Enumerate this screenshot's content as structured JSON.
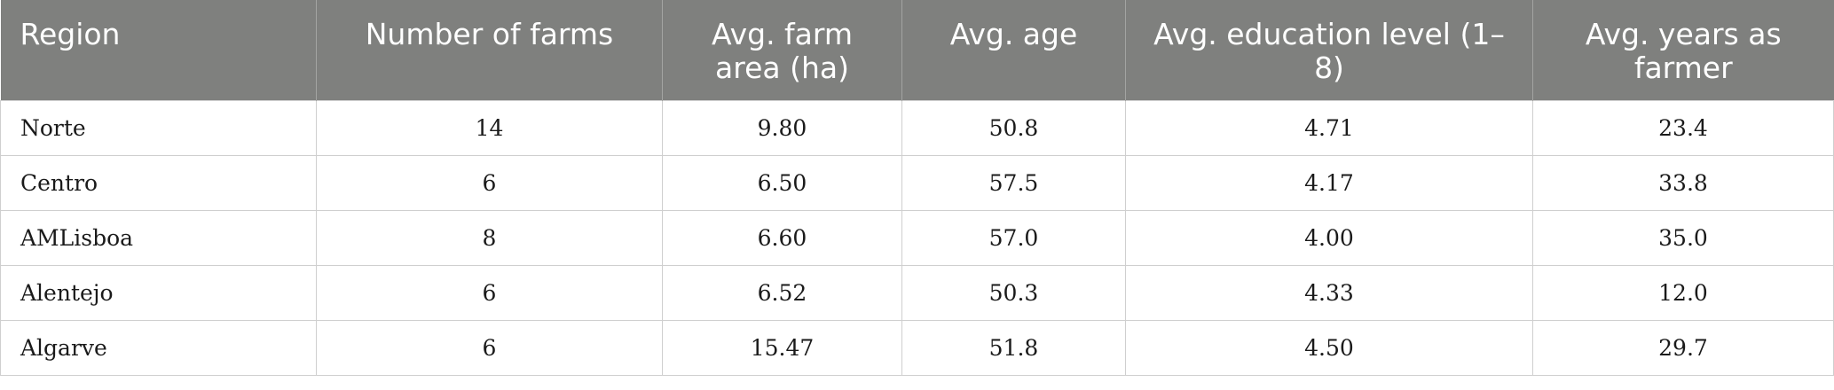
{
  "table": {
    "headers": [
      "Region",
      "Number of farms",
      "Avg. farm area (ha)",
      "Avg. age",
      "Avg. education level (1–8)",
      "Avg. years as farmer"
    ],
    "rows": [
      [
        "Norte",
        "14",
        "9.80",
        "50.8",
        "4.71",
        "23.4"
      ],
      [
        "Centro",
        "6",
        "6.50",
        "57.5",
        "4.17",
        "33.8"
      ],
      [
        "AMLisboa",
        "8",
        "6.60",
        "57.0",
        "4.00",
        "35.0"
      ],
      [
        "Alentejo",
        "6",
        "6.52",
        "50.3",
        "4.33",
        "12.0"
      ],
      [
        "Algarve",
        "6",
        "15.47",
        "51.8",
        "4.50",
        "29.7"
      ]
    ]
  },
  "colors": {
    "header_background": "#7f807e",
    "header_text": "#ffffff",
    "grid_line": "#cfcfcf"
  }
}
